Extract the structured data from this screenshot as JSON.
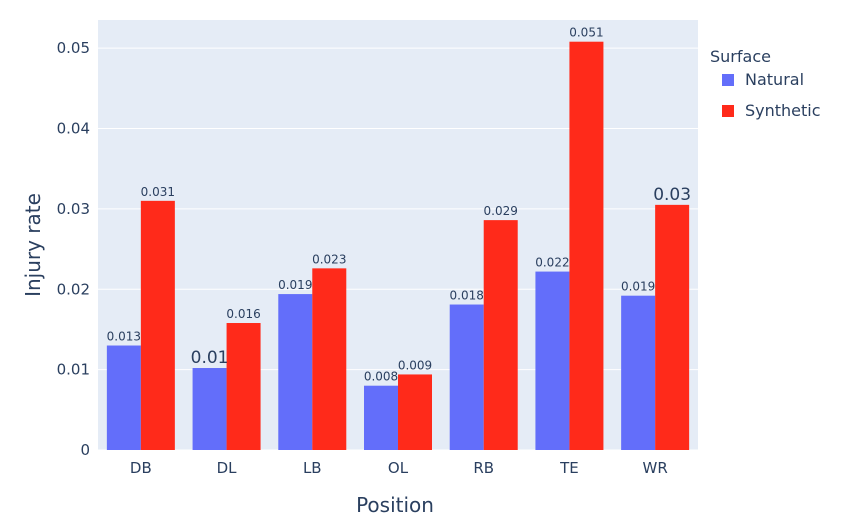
{
  "chart_data": {
    "type": "bar",
    "categories": [
      "DB",
      "DL",
      "LB",
      "OL",
      "RB",
      "TE",
      "WR"
    ],
    "series": [
      {
        "name": "Natural",
        "color": "#636efa",
        "values": [
          0.013,
          0.0102,
          0.0194,
          0.008,
          0.0181,
          0.0222,
          0.0192
        ],
        "labels": [
          "0.013",
          "0.01",
          "0.019",
          "0.008",
          "0.018",
          "0.022",
          "0.019"
        ]
      },
      {
        "name": "Synthetic",
        "color": "#ff2a1a",
        "values": [
          0.031,
          0.0158,
          0.0226,
          0.0094,
          0.0286,
          0.0508,
          0.0305
        ],
        "labels": [
          "0.031",
          "0.016",
          "0.023",
          "0.009",
          "0.029",
          "0.051",
          "0.03"
        ]
      }
    ],
    "xlabel": "Position",
    "ylabel": "Injury rate",
    "ylim": [
      0,
      0.0535
    ],
    "yticks": [
      0,
      0.01,
      0.02,
      0.03,
      0.04,
      0.05
    ],
    "ytick_labels": [
      "0",
      "0.01",
      "0.02",
      "0.03",
      "0.04",
      "0.05"
    ],
    "legend_title": "Surface",
    "legend_position": "top-right",
    "grid": true,
    "plot_background": "#e5ecf6"
  }
}
